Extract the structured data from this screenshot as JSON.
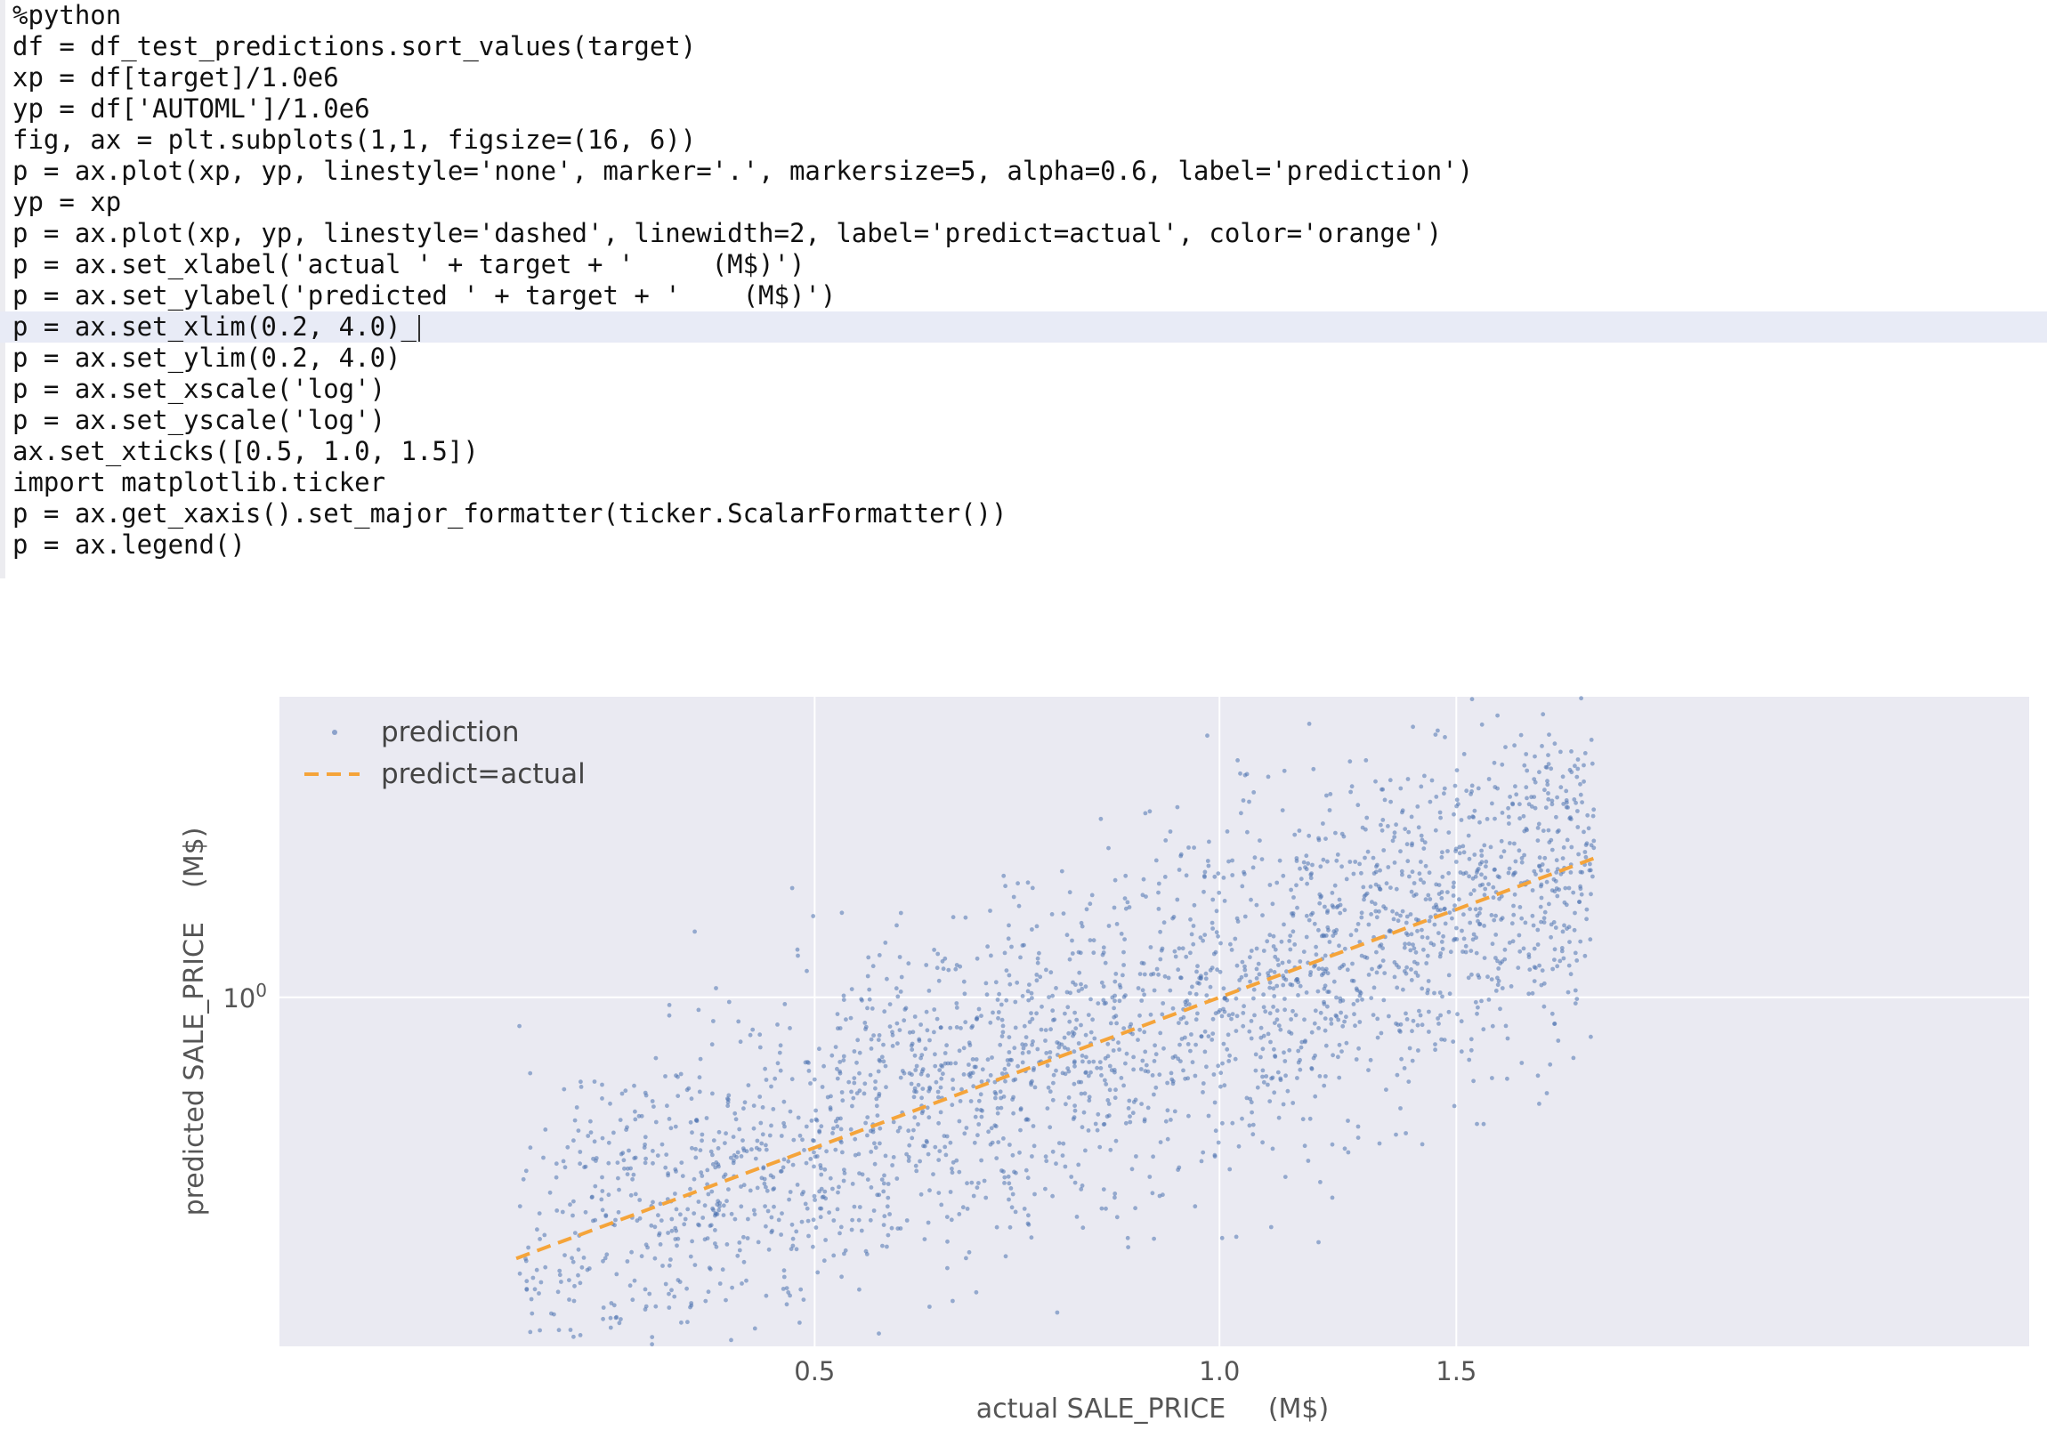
{
  "editor": {
    "lines": [
      "%python",
      "df = df_test_predictions.sort_values(target)",
      "xp = df[target]/1.0e6",
      "yp = df['AUTOML']/1.0e6",
      "fig, ax = plt.subplots(1,1, figsize=(16, 6))",
      "p = ax.plot(xp, yp, linestyle='none', marker='.', markersize=5, alpha=0.6, label='prediction')",
      "yp = xp",
      "p = ax.plot(xp, yp, linestyle='dashed', linewidth=2, label='predict=actual', color='orange')",
      "p = ax.set_xlabel('actual ' + target + '     (M$)')",
      "p = ax.set_ylabel('predicted ' + target + '    (M$)')",
      "p = ax.set_xlim(0.2, 4.0)_",
      "p = ax.set_ylim(0.2, 4.0)",
      "p = ax.set_xscale('log')",
      "p = ax.set_yscale('log')",
      "ax.set_xticks([0.5, 1.0, 1.5])",
      "import matplotlib.ticker",
      "p = ax.get_xaxis().set_major_formatter(ticker.ScalarFormatter())",
      "p = ax.legend()"
    ],
    "active_line_index": 10
  },
  "chart_data": {
    "type": "scatter",
    "xlabel": "actual SALE_PRICE     (M$)",
    "ylabel": "predicted SALE_PRICE    (M$)",
    "x_scale": "log",
    "y_scale": "log",
    "xlim": [
      0.2,
      4.0
    ],
    "ylim": [
      0.2,
      4.0
    ],
    "x_tick_values": [
      0.5,
      1.0,
      1.5
    ],
    "x_tick_labels": [
      "0.5",
      "1.0",
      "1.5"
    ],
    "y_tick_values": [
      1.0
    ],
    "y_tick_label_base": "10",
    "y_tick_label_exp": "0",
    "grid": true,
    "legend_placement": "upper left",
    "series": [
      {
        "name": "prediction",
        "style": "points",
        "color": "#4c72b0",
        "x_range": [
          0.3,
          1.9
        ],
        "noise_log_sigma": 0.17,
        "samples": 2600
      },
      {
        "name": "predict=actual",
        "style": "dashed",
        "color": "#f5a43a",
        "x": [
          0.3,
          1.9
        ],
        "y": [
          0.3,
          1.9
        ]
      }
    ],
    "colors": {
      "plot_background": "#eaeaf2",
      "grid": "#ffffff",
      "text": "#555555"
    }
  }
}
